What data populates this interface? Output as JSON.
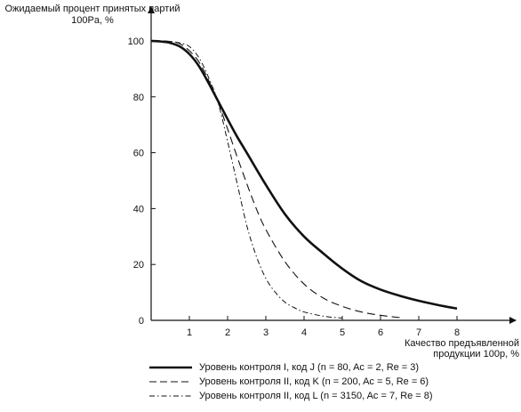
{
  "chart_data": {
    "type": "line",
    "ylabel": "Ожидаемый процент принятых партий 100Pa, %",
    "xlabel": "Качество предъявленной продукции 100p, %",
    "xlim": [
      0,
      8.5
    ],
    "ylim": [
      0,
      100
    ],
    "x_ticks": [
      1,
      2,
      3,
      4,
      5,
      6,
      7,
      8
    ],
    "y_ticks": [
      0,
      20,
      40,
      60,
      80,
      100
    ],
    "y_tick_labels": [
      "0",
      "20",
      "40",
      "60",
      "80",
      "100"
    ],
    "grid": false,
    "legend_position": "bottom",
    "series": [
      {
        "name": "Уровень контроля I, код J (n = 80, Ac = 2, Re = 3)",
        "style": "solid",
        "x": [
          0,
          0.25,
          0.5,
          0.75,
          1.0,
          1.25,
          1.5,
          1.75,
          2.0,
          2.25,
          2.5,
          3.0,
          3.5,
          4.0,
          4.5,
          5.0,
          5.5,
          6.0,
          6.5,
          7.0,
          7.5,
          8.0
        ],
        "y": [
          100,
          99.8,
          99.3,
          98,
          95.3,
          91,
          85,
          78.5,
          72,
          65.7,
          60,
          48.5,
          38,
          30,
          24,
          18.5,
          14,
          11,
          8.8,
          7,
          5.5,
          4.2
        ]
      },
      {
        "name": "Уровень контроля II, код K (n = 200, Ac = 5, Re = 6)",
        "style": "dashed",
        "x": [
          0,
          0.25,
          0.5,
          0.75,
          1.0,
          1.25,
          1.5,
          1.75,
          2.0,
          2.25,
          2.5,
          2.75,
          3.0,
          3.5,
          4.0,
          4.5,
          5.0,
          5.5,
          6.0,
          6.5
        ],
        "y": [
          100,
          100,
          99.8,
          99,
          96.5,
          92.5,
          86,
          78,
          68.5,
          58.5,
          49,
          40,
          32.5,
          21,
          13,
          8,
          5,
          3,
          1.8,
          1
        ]
      },
      {
        "name": "Уровень контроля II, код L (n = 3150, Ac = 7, Re = 8)",
        "style": "dash-dot",
        "x": [
          0,
          0.25,
          0.5,
          0.75,
          1.0,
          1.25,
          1.5,
          1.75,
          2.0,
          2.25,
          2.5,
          2.75,
          3.0,
          3.25,
          3.5,
          3.75,
          4.0,
          4.5,
          5.0
        ],
        "y": [
          100,
          100,
          99.8,
          99.3,
          98,
          94,
          87,
          78,
          64,
          49,
          34,
          23,
          15,
          10,
          6.5,
          4.5,
          3,
          1.5,
          0.8
        ]
      }
    ]
  },
  "legend": {
    "items": [
      "Уровень контроля I, код J (n = 80, Ac = 2, Re = 3)",
      "Уровень контроля II, код K (n = 200, Ac = 5, Re = 6)",
      "Уровень контроля II, код L (n = 3150, Ac = 7, Re = 8)"
    ]
  }
}
